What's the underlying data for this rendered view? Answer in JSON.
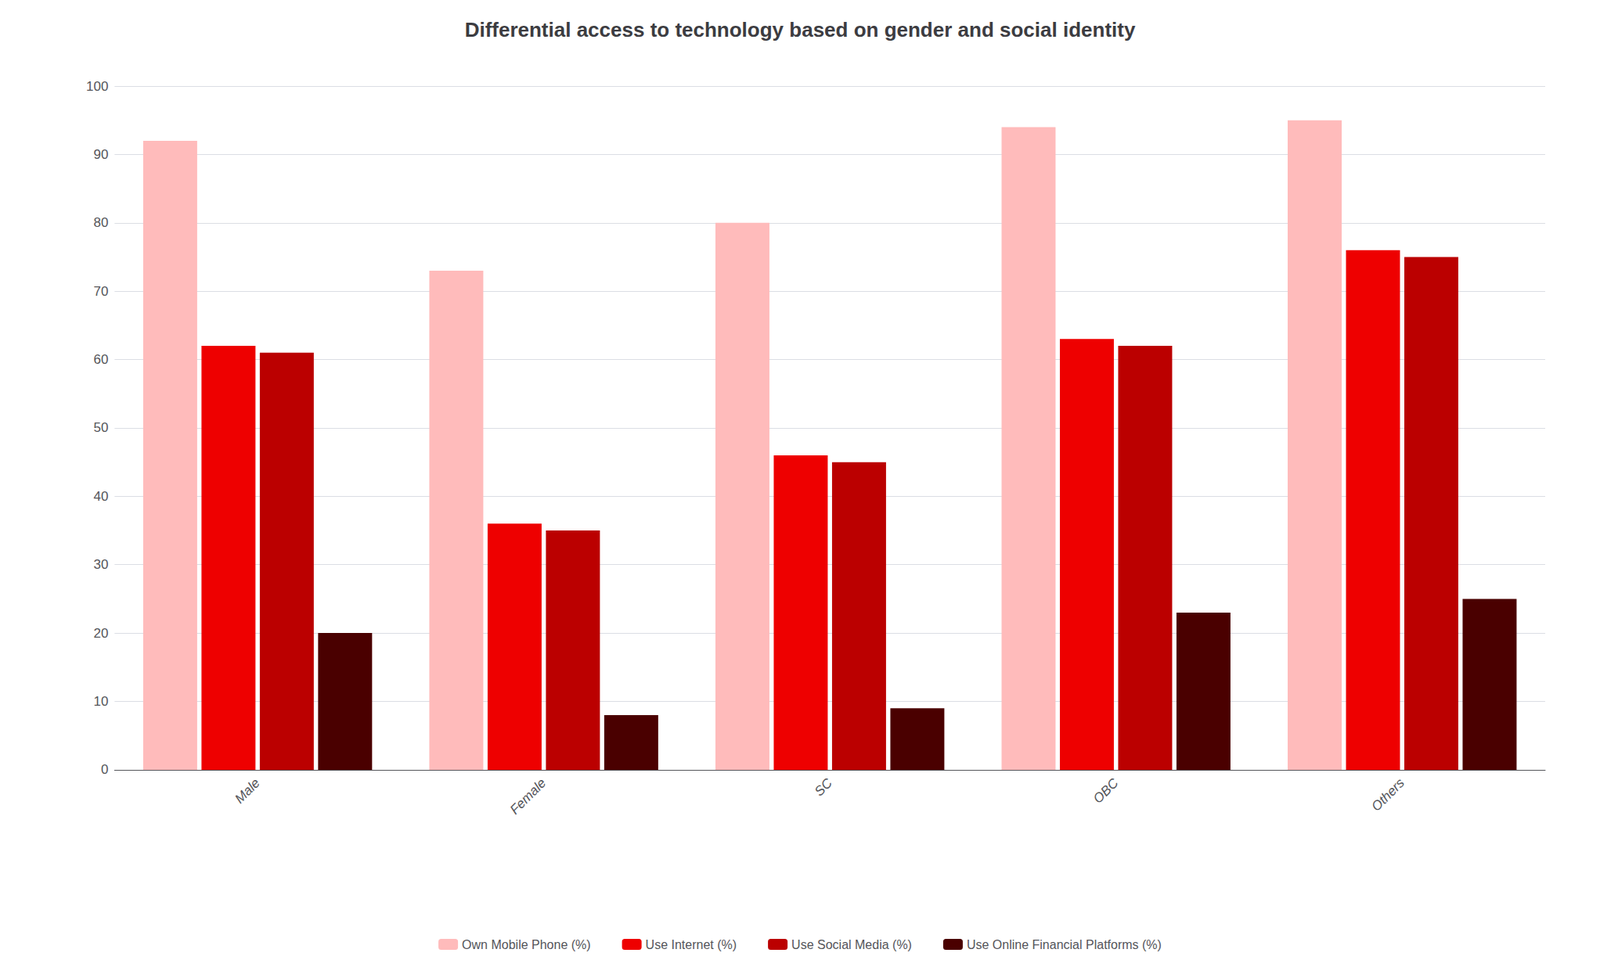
{
  "chart_data": {
    "type": "bar",
    "title": "Differential access to technology based on gender and social identity",
    "categories": [
      "Male",
      "Female",
      "SC",
      "OBC",
      "Others"
    ],
    "series": [
      {
        "name": "Own Mobile Phone (%)",
        "color": "#FFBBBB",
        "values": [
          92,
          73,
          80,
          94,
          95
        ]
      },
      {
        "name": "Use Internet (%)",
        "color": "#EE0000",
        "values": [
          62,
          36,
          46,
          63,
          76
        ]
      },
      {
        "name": "Use Social Media (%)",
        "color": "#BB0000",
        "values": [
          61,
          35,
          45,
          62,
          75
        ]
      },
      {
        "name": "Use Online Financial Platforms (%)",
        "color": "#4A0000",
        "values": [
          20,
          8,
          9,
          23,
          25
        ]
      }
    ],
    "ylim": [
      0,
      100
    ],
    "yticks": [
      0,
      10,
      20,
      30,
      40,
      50,
      60,
      70,
      80,
      90,
      100
    ],
    "grid": true,
    "legend": "bottom"
  }
}
